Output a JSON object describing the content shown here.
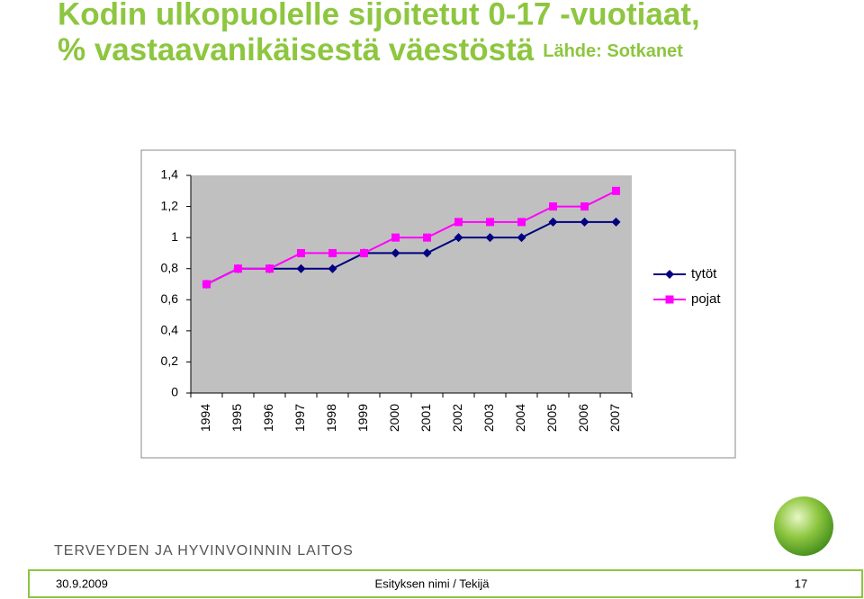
{
  "chart_data": {
    "type": "line",
    "title_line1": "Kodin ulkopuolelle sijoitetut 0-17 -vuotiaat,",
    "title_line2": "% vastaavanikäisestä väestöstä",
    "source": "Lähde: Sotkanet",
    "categories": [
      "1994",
      "1995",
      "1996",
      "1997",
      "1998",
      "1999",
      "2000",
      "2001",
      "2002",
      "2003",
      "2004",
      "2005",
      "2006",
      "2007"
    ],
    "series": [
      {
        "name": "tytöt",
        "color": "#000080",
        "marker": "diamond",
        "values": [
          0.7,
          0.8,
          0.8,
          0.8,
          0.8,
          0.9,
          0.9,
          0.9,
          1.0,
          1.0,
          1.0,
          1.1,
          1.1,
          1.1
        ]
      },
      {
        "name": "pojat",
        "color": "#ff00ff",
        "marker": "square",
        "values": [
          0.7,
          0.8,
          0.8,
          0.9,
          0.9,
          0.9,
          1.0,
          1.0,
          1.1,
          1.1,
          1.1,
          1.2,
          1.2,
          1.3
        ]
      }
    ],
    "ylim": [
      0,
      1.4
    ],
    "yticks": [
      0,
      {
        "value": 0.2,
        "label": "0,2"
      },
      {
        "value": 0.4,
        "label": "0,4"
      },
      {
        "value": 0.6,
        "label": "0,6"
      },
      {
        "value": 0.8,
        "label": "0,8"
      },
      1,
      {
        "value": 1.2,
        "label": "1,2"
      },
      {
        "value": 1.4,
        "label": "1,4"
      }
    ],
    "grid": false,
    "plot_background": "#c0c0c0",
    "legend": "right"
  },
  "footer": {
    "organization": "TERVEYDEN JA HYVINVOINNIN LAITOS",
    "date": "30.9.2009",
    "presentation": "Esityksen nimi / Tekijä",
    "page": "17"
  }
}
